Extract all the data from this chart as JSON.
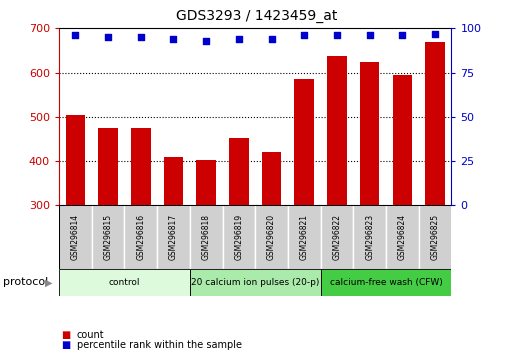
{
  "title": "GDS3293 / 1423459_at",
  "categories": [
    "GSM296814",
    "GSM296815",
    "GSM296816",
    "GSM296817",
    "GSM296818",
    "GSM296819",
    "GSM296820",
    "GSM296821",
    "GSM296822",
    "GSM296823",
    "GSM296824",
    "GSM296825"
  ],
  "bar_values": [
    503,
    474,
    475,
    410,
    402,
    452,
    420,
    585,
    638,
    624,
    594,
    668
  ],
  "percentile_values": [
    96,
    95,
    95,
    94,
    93,
    94,
    94,
    96,
    96,
    96,
    96,
    97
  ],
  "bar_color": "#cc0000",
  "percentile_color": "#0000cc",
  "ylim_left": [
    300,
    700
  ],
  "ylim_right": [
    0,
    100
  ],
  "yticks_left": [
    300,
    400,
    500,
    600,
    700
  ],
  "yticks_right": [
    0,
    25,
    50,
    75,
    100
  ],
  "grid_values": [
    400,
    500,
    600
  ],
  "protocol_groups": [
    {
      "label": "control",
      "start": 0,
      "end": 4,
      "color": "#ddfadd"
    },
    {
      "label": "20 calcium ion pulses (20-p)",
      "start": 4,
      "end": 8,
      "color": "#aaeaaa"
    },
    {
      "label": "calcium-free wash (CFW)",
      "start": 8,
      "end": 12,
      "color": "#44cc44"
    }
  ],
  "label_box_color": "#d0d0d0",
  "legend_count_color": "#cc0000",
  "legend_percentile_color": "#0000cc",
  "bg_color": "#ffffff",
  "tick_label_color_left": "#cc0000",
  "tick_label_color_right": "#0000cc",
  "bar_bottom": 300,
  "protocol_label": "protocol"
}
